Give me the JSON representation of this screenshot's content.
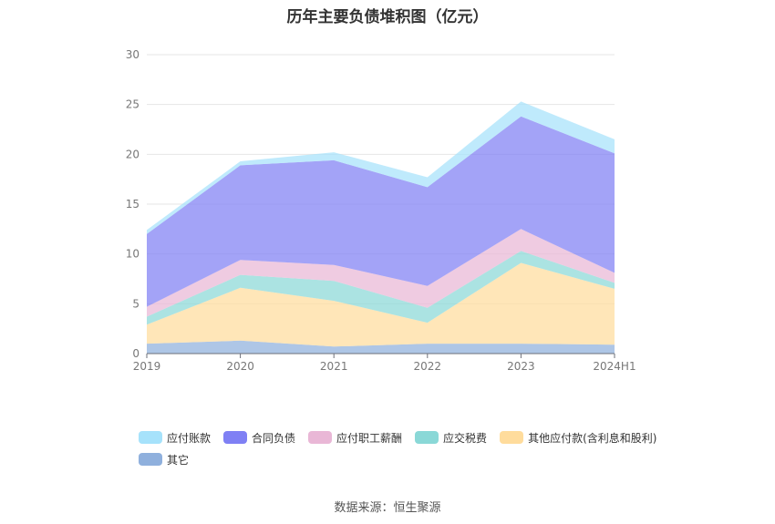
{
  "title": "历年主要负债堆积图（亿元）",
  "source": "数据来源：恒生聚源",
  "chart_data": {
    "type": "area",
    "stacked": true,
    "categories": [
      "2019",
      "2020",
      "2021",
      "2022",
      "2023",
      "2024H1"
    ],
    "ylim": [
      0,
      30
    ],
    "yticks": [
      0,
      5,
      10,
      15,
      20,
      25,
      30
    ],
    "grid": true,
    "legend_position": "bottom",
    "series": [
      {
        "name": "其它",
        "color": "#8fb0dd",
        "values": [
          1.0,
          1.3,
          0.7,
          1.0,
          1.0,
          0.9
        ]
      },
      {
        "name": "其他应付款(含利息和股利)",
        "color": "#ffdc9c",
        "values": [
          1.9,
          5.3,
          4.6,
          2.1,
          8.1,
          5.6
        ]
      },
      {
        "name": "应交税费",
        "color": "#8ad8d7",
        "values": [
          0.8,
          1.3,
          2.0,
          1.5,
          1.2,
          0.6
        ]
      },
      {
        "name": "应付职工薪酬",
        "color": "#e9b7d6",
        "values": [
          1.0,
          1.5,
          1.6,
          2.2,
          2.2,
          1.0
        ]
      },
      {
        "name": "合同负债",
        "color": "#7f80f4",
        "values": [
          7.3,
          9.5,
          10.5,
          9.9,
          11.3,
          12.0
        ]
      },
      {
        "name": "应付账款",
        "color": "#a6e2fb",
        "values": [
          0.4,
          0.4,
          0.8,
          1.0,
          1.5,
          1.4
        ]
      }
    ]
  }
}
